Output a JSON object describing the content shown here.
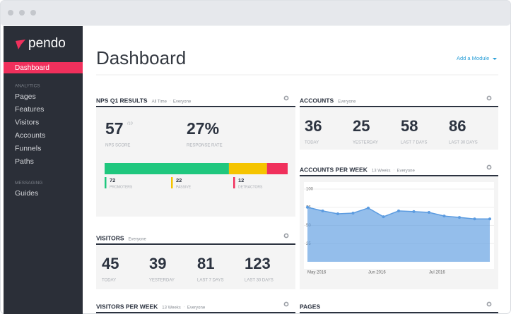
{
  "sidebar": {
    "brand": "pendo",
    "active": "Dashboard",
    "sections": [
      {
        "label": "ANALYTICS",
        "items": [
          "Pages",
          "Features",
          "Visitors",
          "Accounts",
          "Funnels",
          "Paths"
        ]
      },
      {
        "label": "MESSAGING",
        "items": [
          "Guides"
        ]
      }
    ]
  },
  "header": {
    "title": "Dashboard",
    "action": "Add a Module"
  },
  "nps": {
    "title": "NPS Q1 RESULTS",
    "filters": [
      "All Time",
      "Everyone"
    ],
    "score": "57",
    "score_suffix": "/10",
    "score_label": "NPS SCORE",
    "rate": "27%",
    "rate_label": "RESPONSE RATE",
    "breakdown": [
      {
        "name": "PROMOTERS",
        "value": 72,
        "color": "#1fc77e"
      },
      {
        "name": "PASSIVE",
        "value": 22,
        "color": "#f5c400"
      },
      {
        "name": "DETRACTORS",
        "value": 12,
        "color": "#f0305c"
      }
    ]
  },
  "accounts": {
    "title": "ACCOUNTS",
    "filters": [
      "Everyone"
    ],
    "stats": [
      {
        "value": "36",
        "label": "TODAY"
      },
      {
        "value": "25",
        "label": "YESTERDAY"
      },
      {
        "value": "58",
        "label": "LAST 7 DAYS"
      },
      {
        "value": "86",
        "label": "LAST 30 DAYS"
      }
    ]
  },
  "accounts_per_week": {
    "title": "ACCOUNTS PER WEEK",
    "filters": [
      "13 Weeks",
      "Everyone"
    ],
    "chart_data": {
      "type": "area",
      "categories": [
        "May 2016",
        null,
        null,
        null,
        "Jun 2016",
        null,
        null,
        null,
        "Jul 2016",
        null,
        null,
        null,
        null
      ],
      "values": [
        75,
        70,
        66,
        67,
        74,
        62,
        70,
        69,
        68,
        63,
        61,
        59,
        59
      ],
      "color": "#5b9be0",
      "ylim": [
        0,
        100
      ],
      "yticks": [
        25,
        50,
        75,
        100
      ],
      "grid": true
    }
  },
  "visitors": {
    "title": "VISITORS",
    "filters": [
      "Everyone"
    ],
    "stats": [
      {
        "value": "45",
        "label": "TODAY"
      },
      {
        "value": "39",
        "label": "YESTERDAY"
      },
      {
        "value": "81",
        "label": "LAST 7 DAYS"
      },
      {
        "value": "123",
        "label": "LAST 30 DAYS"
      }
    ]
  },
  "visitors_per_week": {
    "title": "VISITORS PER WEEK",
    "filters": [
      "13 Weeks",
      "Everyone"
    ]
  },
  "pages": {
    "title": "PAGES"
  }
}
